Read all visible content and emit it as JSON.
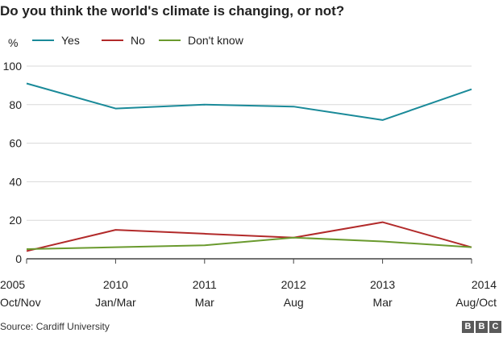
{
  "header": {
    "title": "Do you think the world's climate is changing, or not?"
  },
  "footer": {
    "source": "Source: Cardiff University",
    "logo_letters": [
      "B",
      "B",
      "C"
    ]
  },
  "colors": {
    "yes": "#1a8a99",
    "no": "#b22a2a",
    "dont_know": "#6a9a2e",
    "grid": "#d8d8d8",
    "axis": "#444444",
    "text": "#222222"
  },
  "chart_data": {
    "type": "line",
    "ylabel": "%",
    "ylim": [
      0,
      100
    ],
    "yticks": [
      0,
      20,
      40,
      60,
      80,
      100
    ],
    "grid": true,
    "legend_position": "top-left",
    "x": [
      {
        "year": "2005",
        "period": "Oct/Nov"
      },
      {
        "year": "2010",
        "period": "Jan/Mar"
      },
      {
        "year": "2011",
        "period": "Mar"
      },
      {
        "year": "2012",
        "period": "Aug"
      },
      {
        "year": "2013",
        "period": "Mar"
      },
      {
        "year": "2014",
        "period": "Aug/Oct"
      }
    ],
    "series": [
      {
        "name": "Yes",
        "color_key": "yes",
        "values": [
          91,
          78,
          80,
          79,
          72,
          88
        ]
      },
      {
        "name": "No",
        "color_key": "no",
        "values": [
          4,
          15,
          13,
          11,
          19,
          6
        ]
      },
      {
        "name": "Don't know",
        "color_key": "dont_know",
        "values": [
          5,
          6,
          7,
          11,
          9,
          6
        ]
      }
    ]
  }
}
